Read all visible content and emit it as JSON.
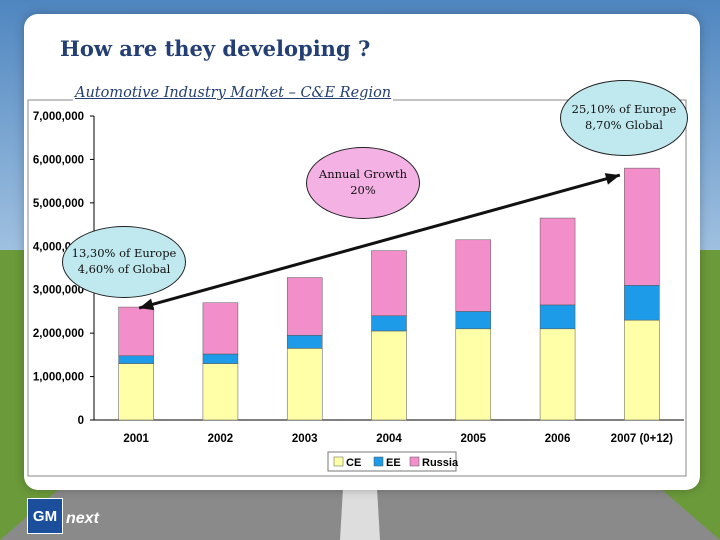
{
  "slide": {
    "title": "How are they developing ?",
    "subtitle": "Automotive Industry Market – C&E Region"
  },
  "annotations": {
    "start_share": "13,30% of Europe\n4,60% of Global",
    "growth": "Annual Growth\n20%",
    "end_share": "25,10% of Europe\n8,70% Global"
  },
  "logo": {
    "brand": "GM",
    "tagline": "next"
  },
  "colors": {
    "CE": "#ffffa8",
    "EE": "#1e9be8",
    "Russia": "#f28ec9",
    "arrow": "#111111",
    "title": "#243f73"
  },
  "chart_data": {
    "type": "bar",
    "stacked": true,
    "categories": [
      "2001",
      "2002",
      "2003",
      "2004",
      "2005",
      "2006",
      "2007 (0+12)"
    ],
    "series": [
      {
        "name": "CE",
        "values": [
          1300000,
          1300000,
          1650000,
          2050000,
          2100000,
          2100000,
          2300000
        ]
      },
      {
        "name": "EE",
        "values": [
          180000,
          220000,
          300000,
          350000,
          400000,
          550000,
          800000
        ]
      },
      {
        "name": "Russia",
        "values": [
          1120000,
          1180000,
          1330000,
          1500000,
          1650000,
          2000000,
          2700000
        ]
      }
    ],
    "ylim": [
      0,
      7000000
    ],
    "yticks": [
      "0",
      "1,000,000",
      "2,000,000",
      "3,000,000",
      "4,000,000",
      "5,000,000",
      "6,000,000",
      "7,000,000"
    ],
    "ytick_values": [
      0,
      1000000,
      2000000,
      3000000,
      4000000,
      5000000,
      6000000,
      7000000
    ],
    "legend_position": "bottom",
    "grid": false
  }
}
